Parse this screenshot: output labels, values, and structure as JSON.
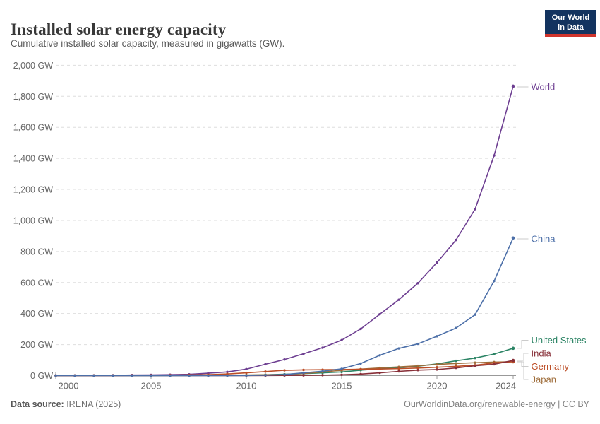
{
  "header": {
    "title": "Installed solar energy capacity",
    "subtitle": "Cumulative installed solar capacity, measured in gigawatts (GW)."
  },
  "logo": {
    "line1": "Our World",
    "line2": "in Data",
    "bg_color": "#13335f",
    "bar_color": "#d0342c"
  },
  "footer": {
    "source_label": "Data source:",
    "source_value": " IRENA (2025)",
    "credit": "OurWorldinData.org/renewable-energy | CC BY"
  },
  "chart_data": {
    "type": "line",
    "title": "Installed solar energy capacity",
    "ylabel": "",
    "xlabel": "",
    "unit": "GW",
    "grid": true,
    "ylim": [
      0,
      2000
    ],
    "ytick_step": 200,
    "ytick_suffix": " GW",
    "x_start": 2000,
    "x_end": 2024,
    "xticks": [
      2000,
      2005,
      2010,
      2015,
      2020,
      2024
    ],
    "series": [
      {
        "name": "World",
        "color": "#6D3E91",
        "values": [
          1.2,
          1.5,
          1.8,
          2.3,
          3.5,
          4.6,
          6.1,
          8.4,
          15.5,
          23.6,
          41.7,
          73.3,
          103.7,
          140.5,
          179.7,
          228.8,
          300.8,
          395.6,
          488.9,
          595.5,
          728.4,
          873.9,
          1072.7,
          1418.5,
          1865.3
        ]
      },
      {
        "name": "China",
        "color": "#4C6FA8",
        "values": [
          0.03,
          0.05,
          0.06,
          0.08,
          0.08,
          0.08,
          0.08,
          0.1,
          0.15,
          0.3,
          1.02,
          3.11,
          6.72,
          17.76,
          28.4,
          43.55,
          77.8,
          130.8,
          175.1,
          204.7,
          253.6,
          306.4,
          393,
          609.5,
          887
        ]
      },
      {
        "name": "United States",
        "color": "#2C8465",
        "values": [
          0.14,
          0.17,
          0.21,
          0.28,
          0.38,
          0.48,
          0.62,
          0.83,
          1.19,
          1.62,
          2.91,
          5.64,
          8.61,
          13,
          17.65,
          23.44,
          34.71,
          43.02,
          51.45,
          60.68,
          75.57,
          95.21,
          113.02,
          139,
          176.2
        ]
      },
      {
        "name": "India",
        "color": "#883039",
        "values": [
          0,
          0,
          0.01,
          0.01,
          0.01,
          0.01,
          0.01,
          0.02,
          0.02,
          0.02,
          0.07,
          0.57,
          1.21,
          1.71,
          2.79,
          5.59,
          9.88,
          18.15,
          27.35,
          35.09,
          39.21,
          49.34,
          63.15,
          73.11,
          97.9
        ]
      },
      {
        "name": "Germany",
        "color": "#BC4E27",
        "values": [
          0.11,
          0.19,
          0.26,
          0.43,
          1.1,
          2.1,
          2.9,
          4.2,
          6.1,
          10.6,
          18,
          25.9,
          34.1,
          36.7,
          37.9,
          39.2,
          40.7,
          42.3,
          45.2,
          48.9,
          53.7,
          59.4,
          66.7,
          81.7,
          90.1
        ]
      },
      {
        "name": "Japan",
        "color": "#9E6C39",
        "values": [
          0.33,
          0.45,
          0.64,
          0.86,
          1.13,
          1.42,
          1.71,
          1.92,
          2.14,
          2.63,
          3.62,
          4.9,
          6.63,
          13.6,
          23.3,
          34.2,
          42,
          49.5,
          56.2,
          63.2,
          71.9,
          78.4,
          83.1,
          87.1,
          89.1
        ]
      }
    ],
    "legend_position": "right-end-labels",
    "label_layout": {
      "World": 123,
      "China": 338,
      "United States": 481.5,
      "India": 500,
      "Germany": 518.5,
      "Japan": 537
    },
    "draw_order": [
      "World",
      "United States",
      "Japan",
      "Germany",
      "India",
      "China"
    ]
  }
}
